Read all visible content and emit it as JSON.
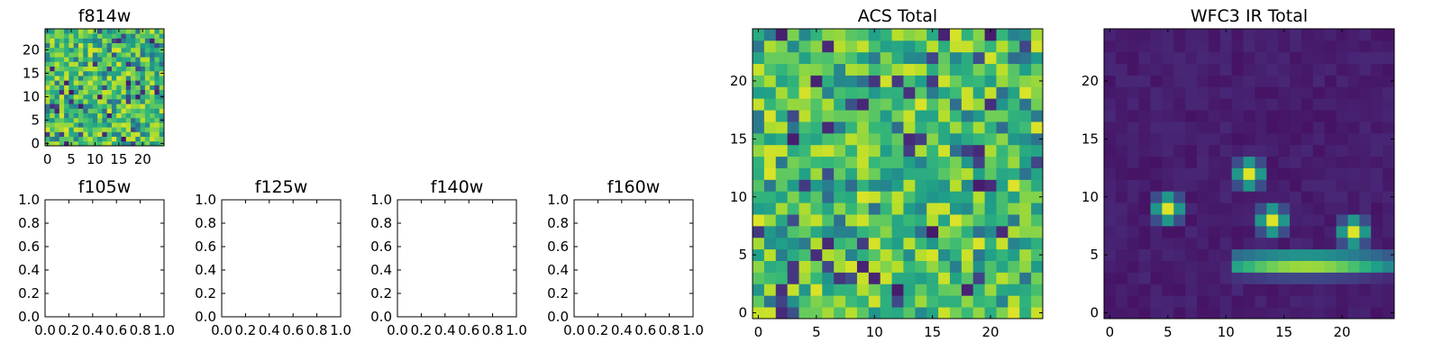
{
  "chart_data": [
    {
      "id": "f814w",
      "type": "heatmap",
      "title": "f814w",
      "colormap": "viridis",
      "grid_size": 25,
      "xlim": [
        -0.5,
        24.5
      ],
      "ylim": [
        -0.5,
        24.5
      ],
      "xticks": [
        0,
        5,
        10,
        15,
        20
      ],
      "xtick_labels": [
        "0",
        "5",
        "10",
        "15",
        "20"
      ],
      "yticks": [
        0,
        5,
        10,
        15,
        20
      ],
      "ytick_labels": [
        "0",
        "5",
        "10",
        "15",
        "20"
      ],
      "values": "random_noise",
      "seed": 3
    },
    {
      "id": "f105w",
      "type": "empty",
      "title": "f105w",
      "xlim": [
        0,
        1
      ],
      "ylim": [
        0,
        1
      ],
      "xticks": [
        0,
        0.2,
        0.4,
        0.6,
        0.8,
        1.0
      ],
      "xtick_labels": [
        "0.0",
        "0.2",
        "0.4",
        "0.6",
        "0.8",
        "1.0"
      ],
      "yticks": [
        0,
        0.2,
        0.4,
        0.6,
        0.8,
        1.0
      ],
      "ytick_labels": [
        "0.0",
        "0.2",
        "0.4",
        "0.6",
        "0.8",
        "1.0"
      ]
    },
    {
      "id": "f125w",
      "type": "empty",
      "title": "f125w",
      "xlim": [
        0,
        1
      ],
      "ylim": [
        0,
        1
      ],
      "xticks": [
        0,
        0.2,
        0.4,
        0.6,
        0.8,
        1.0
      ],
      "xtick_labels": [
        "0.0",
        "0.2",
        "0.4",
        "0.6",
        "0.8",
        "1.0"
      ],
      "yticks": [
        0,
        0.2,
        0.4,
        0.6,
        0.8,
        1.0
      ],
      "ytick_labels": [
        "0.0",
        "0.2",
        "0.4",
        "0.6",
        "0.8",
        "1.0"
      ]
    },
    {
      "id": "f140w",
      "type": "empty",
      "title": "f140w",
      "xlim": [
        0,
        1
      ],
      "ylim": [
        0,
        1
      ],
      "xticks": [
        0,
        0.2,
        0.4,
        0.6,
        0.8,
        1.0
      ],
      "xtick_labels": [
        "0.0",
        "0.2",
        "0.4",
        "0.6",
        "0.8",
        "1.0"
      ],
      "yticks": [
        0,
        0.2,
        0.4,
        0.6,
        0.8,
        1.0
      ],
      "ytick_labels": [
        "0.0",
        "0.2",
        "0.4",
        "0.6",
        "0.8",
        "1.0"
      ]
    },
    {
      "id": "f160w",
      "type": "empty",
      "title": "f160w",
      "xlim": [
        0,
        1
      ],
      "ylim": [
        0,
        1
      ],
      "xticks": [
        0,
        0.2,
        0.4,
        0.6,
        0.8,
        1.0
      ],
      "xtick_labels": [
        "0.0",
        "0.2",
        "0.4",
        "0.6",
        "0.8",
        "1.0"
      ],
      "yticks": [
        0,
        0.2,
        0.4,
        0.6,
        0.8,
        1.0
      ],
      "ytick_labels": [
        "0.0",
        "0.2",
        "0.4",
        "0.6",
        "0.8",
        "1.0"
      ]
    },
    {
      "id": "acs_total",
      "type": "heatmap",
      "title": "ACS Total",
      "colormap": "viridis",
      "grid_size": 25,
      "xlim": [
        -0.5,
        24.5
      ],
      "ylim": [
        -0.5,
        24.5
      ],
      "xticks": [
        0,
        5,
        10,
        15,
        20
      ],
      "xtick_labels": [
        "0",
        "5",
        "10",
        "15",
        "20"
      ],
      "yticks": [
        0,
        5,
        10,
        15,
        20
      ],
      "ytick_labels": [
        "0",
        "5",
        "10",
        "15",
        "20"
      ],
      "values": "random_noise",
      "seed": 7
    },
    {
      "id": "wfc3_ir_total",
      "type": "heatmap",
      "title": "WFC3 IR Total",
      "colormap": "viridis",
      "grid_size": 25,
      "xlim": [
        -0.5,
        24.5
      ],
      "ylim": [
        -0.5,
        24.5
      ],
      "xticks": [
        0,
        5,
        10,
        15,
        20
      ],
      "xtick_labels": [
        "0",
        "5",
        "10",
        "15",
        "20"
      ],
      "yticks": [
        0,
        5,
        10,
        15,
        20
      ],
      "ytick_labels": [
        "0",
        "5",
        "10",
        "15",
        "20"
      ],
      "values": "sources",
      "seed": 11,
      "background_level": 0.05,
      "sources": [
        {
          "x": 5,
          "y": 9,
          "peak": 0.95
        },
        {
          "x": 12,
          "y": 12,
          "peak": 0.95
        },
        {
          "x": 14,
          "y": 8,
          "peak": 0.95
        },
        {
          "x": 21,
          "y": 7,
          "peak": 0.95
        },
        {
          "x_start": 11,
          "x_end": 24,
          "y": 4.5,
          "peak": 0.85,
          "shape": "streak"
        }
      ]
    }
  ]
}
